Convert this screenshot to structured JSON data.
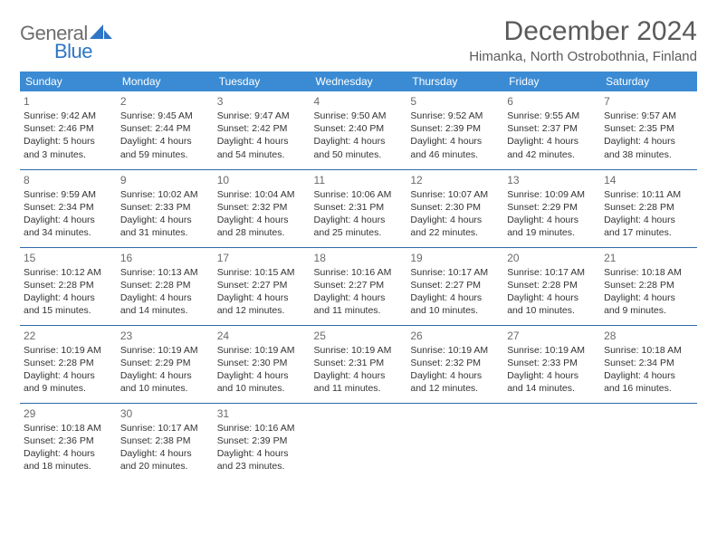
{
  "brand": {
    "word1": "General",
    "word2": "Blue",
    "shape_color": "#2e75c6"
  },
  "title": "December 2024",
  "location": "Himanka, North Ostrobothnia, Finland",
  "colors": {
    "header_bg": "#3b8bd4",
    "header_text": "#ffffff",
    "row_divider": "#2f6aa8",
    "title_text": "#5a5a5a",
    "daynum_text": "#6a6a6a",
    "body_text": "#333333"
  },
  "day_headers": [
    "Sunday",
    "Monday",
    "Tuesday",
    "Wednesday",
    "Thursday",
    "Friday",
    "Saturday"
  ],
  "weeks": [
    [
      {
        "n": "1",
        "sunrise": "9:42 AM",
        "sunset": "2:46 PM",
        "daylight": "5 hours and 3 minutes."
      },
      {
        "n": "2",
        "sunrise": "9:45 AM",
        "sunset": "2:44 PM",
        "daylight": "4 hours and 59 minutes."
      },
      {
        "n": "3",
        "sunrise": "9:47 AM",
        "sunset": "2:42 PM",
        "daylight": "4 hours and 54 minutes."
      },
      {
        "n": "4",
        "sunrise": "9:50 AM",
        "sunset": "2:40 PM",
        "daylight": "4 hours and 50 minutes."
      },
      {
        "n": "5",
        "sunrise": "9:52 AM",
        "sunset": "2:39 PM",
        "daylight": "4 hours and 46 minutes."
      },
      {
        "n": "6",
        "sunrise": "9:55 AM",
        "sunset": "2:37 PM",
        "daylight": "4 hours and 42 minutes."
      },
      {
        "n": "7",
        "sunrise": "9:57 AM",
        "sunset": "2:35 PM",
        "daylight": "4 hours and 38 minutes."
      }
    ],
    [
      {
        "n": "8",
        "sunrise": "9:59 AM",
        "sunset": "2:34 PM",
        "daylight": "4 hours and 34 minutes."
      },
      {
        "n": "9",
        "sunrise": "10:02 AM",
        "sunset": "2:33 PM",
        "daylight": "4 hours and 31 minutes."
      },
      {
        "n": "10",
        "sunrise": "10:04 AM",
        "sunset": "2:32 PM",
        "daylight": "4 hours and 28 minutes."
      },
      {
        "n": "11",
        "sunrise": "10:06 AM",
        "sunset": "2:31 PM",
        "daylight": "4 hours and 25 minutes."
      },
      {
        "n": "12",
        "sunrise": "10:07 AM",
        "sunset": "2:30 PM",
        "daylight": "4 hours and 22 minutes."
      },
      {
        "n": "13",
        "sunrise": "10:09 AM",
        "sunset": "2:29 PM",
        "daylight": "4 hours and 19 minutes."
      },
      {
        "n": "14",
        "sunrise": "10:11 AM",
        "sunset": "2:28 PM",
        "daylight": "4 hours and 17 minutes."
      }
    ],
    [
      {
        "n": "15",
        "sunrise": "10:12 AM",
        "sunset": "2:28 PM",
        "daylight": "4 hours and 15 minutes."
      },
      {
        "n": "16",
        "sunrise": "10:13 AM",
        "sunset": "2:28 PM",
        "daylight": "4 hours and 14 minutes."
      },
      {
        "n": "17",
        "sunrise": "10:15 AM",
        "sunset": "2:27 PM",
        "daylight": "4 hours and 12 minutes."
      },
      {
        "n": "18",
        "sunrise": "10:16 AM",
        "sunset": "2:27 PM",
        "daylight": "4 hours and 11 minutes."
      },
      {
        "n": "19",
        "sunrise": "10:17 AM",
        "sunset": "2:27 PM",
        "daylight": "4 hours and 10 minutes."
      },
      {
        "n": "20",
        "sunrise": "10:17 AM",
        "sunset": "2:28 PM",
        "daylight": "4 hours and 10 minutes."
      },
      {
        "n": "21",
        "sunrise": "10:18 AM",
        "sunset": "2:28 PM",
        "daylight": "4 hours and 9 minutes."
      }
    ],
    [
      {
        "n": "22",
        "sunrise": "10:19 AM",
        "sunset": "2:28 PM",
        "daylight": "4 hours and 9 minutes."
      },
      {
        "n": "23",
        "sunrise": "10:19 AM",
        "sunset": "2:29 PM",
        "daylight": "4 hours and 10 minutes."
      },
      {
        "n": "24",
        "sunrise": "10:19 AM",
        "sunset": "2:30 PM",
        "daylight": "4 hours and 10 minutes."
      },
      {
        "n": "25",
        "sunrise": "10:19 AM",
        "sunset": "2:31 PM",
        "daylight": "4 hours and 11 minutes."
      },
      {
        "n": "26",
        "sunrise": "10:19 AM",
        "sunset": "2:32 PM",
        "daylight": "4 hours and 12 minutes."
      },
      {
        "n": "27",
        "sunrise": "10:19 AM",
        "sunset": "2:33 PM",
        "daylight": "4 hours and 14 minutes."
      },
      {
        "n": "28",
        "sunrise": "10:18 AM",
        "sunset": "2:34 PM",
        "daylight": "4 hours and 16 minutes."
      }
    ],
    [
      {
        "n": "29",
        "sunrise": "10:18 AM",
        "sunset": "2:36 PM",
        "daylight": "4 hours and 18 minutes."
      },
      {
        "n": "30",
        "sunrise": "10:17 AM",
        "sunset": "2:38 PM",
        "daylight": "4 hours and 20 minutes."
      },
      {
        "n": "31",
        "sunrise": "10:16 AM",
        "sunset": "2:39 PM",
        "daylight": "4 hours and 23 minutes."
      },
      null,
      null,
      null,
      null
    ]
  ],
  "labels": {
    "sunrise": "Sunrise:",
    "sunset": "Sunset:",
    "daylight": "Daylight:"
  }
}
